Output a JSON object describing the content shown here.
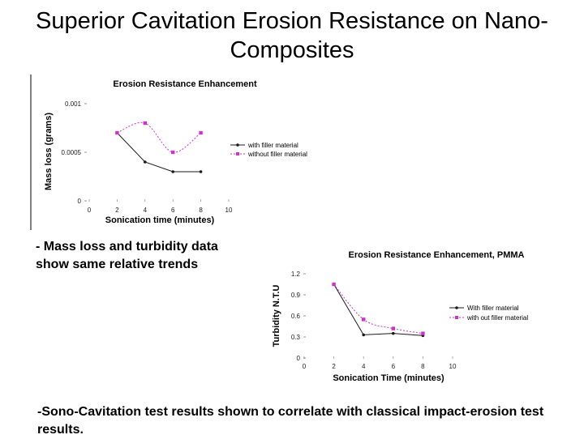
{
  "slide": {
    "title": "Superior Cavitation Erosion Resistance on Nano-Composites",
    "bullet1": "- Mass loss and turbidity data show same relative trends",
    "bullet2": "-Sono-Cavitation test results shown to correlate with classical impact-erosion test results."
  },
  "chart_data": [
    {
      "type": "line",
      "title": "Erosion Resistance Enhancement",
      "xlabel": "Sonication time (minutes)",
      "ylabel": "Mass loss (grams)",
      "xlim": [
        0,
        10
      ],
      "ylim": [
        0,
        0.001
      ],
      "xticks": [
        "0",
        "2",
        "4",
        "6",
        "8",
        "10"
      ],
      "yticks": [
        {
          "value": 0,
          "label": "0"
        },
        {
          "value": 0.0005,
          "label": "0.0005"
        },
        {
          "value": 0.001,
          "label": "0.001"
        }
      ],
      "grid": false,
      "legend": "right",
      "series": [
        {
          "name": "with filler material",
          "color": "#1a1a1a",
          "marker": "dot",
          "dash": "solid",
          "x": [
            2,
            4,
            6,
            8
          ],
          "y": [
            0.0007,
            0.0004,
            0.0003,
            0.0003
          ]
        },
        {
          "name": "without filler material",
          "color": "#cc33cc",
          "marker": "square",
          "dash": "dashed",
          "x": [
            2,
            4,
            6,
            8
          ],
          "y": [
            0.0007,
            0.0008,
            0.0005,
            0.0007
          ]
        }
      ]
    },
    {
      "type": "line",
      "title": "Erosion Resistance Enhancement, PMMA",
      "xlabel": "Sonication Time (minutes)",
      "ylabel": "Turbidity N.T.U",
      "xlim": [
        0,
        10
      ],
      "ylim": [
        0,
        1.2
      ],
      "xticks": [
        "0",
        "2",
        "4",
        "6",
        "8",
        "10"
      ],
      "yticks": [
        {
          "value": 0,
          "label": "0"
        },
        {
          "value": 0.3,
          "label": "0.3"
        },
        {
          "value": 0.6,
          "label": "0.6"
        },
        {
          "value": 0.9,
          "label": "0.9"
        },
        {
          "value": 1.2,
          "label": "1.2"
        }
      ],
      "grid": false,
      "legend": "right",
      "series": [
        {
          "name": "With filler material",
          "color": "#1a1a1a",
          "marker": "dot",
          "dash": "solid",
          "x": [
            2,
            4,
            6,
            8
          ],
          "y": [
            1.05,
            0.33,
            0.35,
            0.32
          ]
        },
        {
          "name": "with out filler material",
          "color": "#cc33cc",
          "marker": "square",
          "dash": "dashed",
          "x": [
            2,
            4,
            6,
            8
          ],
          "y": [
            1.05,
            0.55,
            0.42,
            0.35
          ]
        }
      ]
    }
  ]
}
